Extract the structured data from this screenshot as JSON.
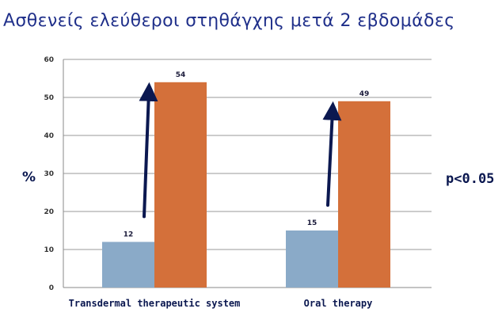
{
  "chart_data": {
    "type": "bar",
    "title": "Ασθενείς ελεύθεροι στηθάγχης μετά 2 εβδομάδες",
    "ylabel": "%",
    "xlabel": "",
    "categories": [
      "Transdermal therapeutic system",
      "Oral therapy"
    ],
    "series": [
      {
        "values": [
          12,
          15
        ],
        "color": "#8aaac8"
      },
      {
        "values": [
          54,
          49
        ],
        "color": "#d4703a"
      }
    ],
    "ylim": [
      0,
      60
    ],
    "yticks": [
      0,
      10,
      20,
      30,
      40,
      50,
      60
    ],
    "grid": true,
    "legend": "none",
    "annotation": "p<0.05",
    "arrow_color": "#0b1850"
  }
}
